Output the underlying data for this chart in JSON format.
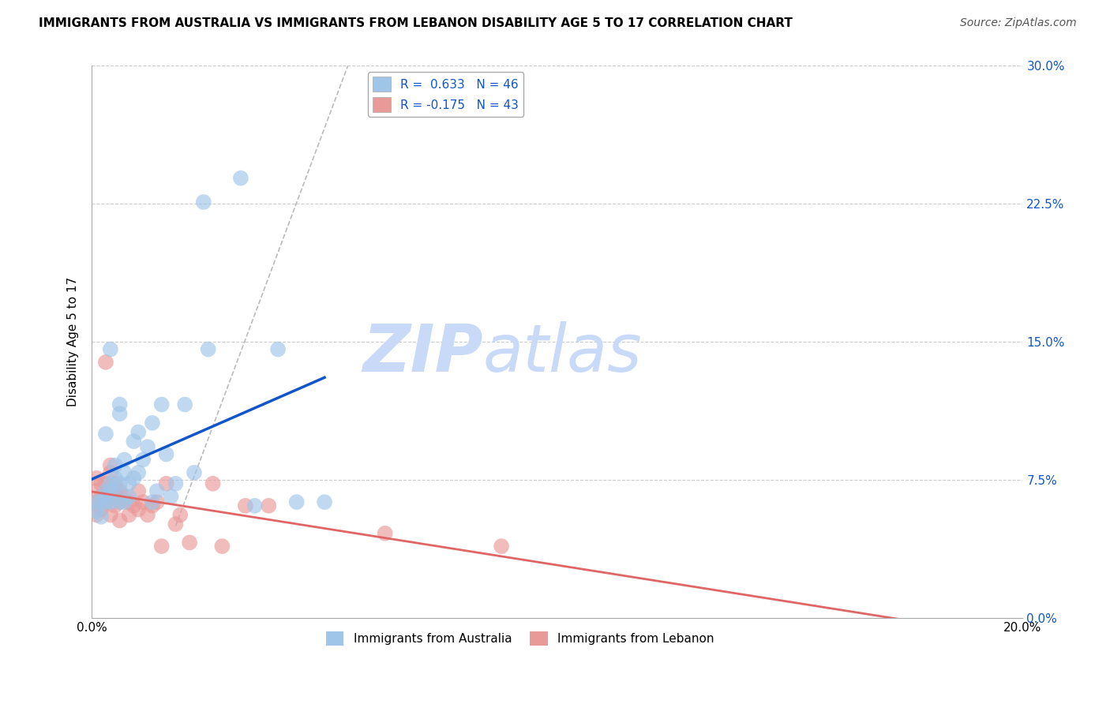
{
  "title": "IMMIGRANTS FROM AUSTRALIA VS IMMIGRANTS FROM LEBANON DISABILITY AGE 5 TO 17 CORRELATION CHART",
  "source": "Source: ZipAtlas.com",
  "ylabel": "Disability Age 5 to 17",
  "xlim": [
    0.0,
    0.2
  ],
  "ylim": [
    0.0,
    0.3
  ],
  "xticks": [
    0.0,
    0.2
  ],
  "yticks": [
    0.0,
    0.075,
    0.15,
    0.225,
    0.3
  ],
  "legend1_label": "R =  0.633   N = 46",
  "legend2_label": "R = -0.175   N = 43",
  "legend_bottom_label1": "Immigrants from Australia",
  "legend_bottom_label2": "Immigrants from Lebanon",
  "color_australia": "#9fc5e8",
  "color_lebanon": "#ea9999",
  "regression_color_australia": "#1155cc",
  "regression_color_lebanon": "#e06666",
  "watermark_zip": "ZIP",
  "watermark_atlas": "atlas",
  "watermark_color": "#c9daf8",
  "scatter_australia": [
    [
      0.001,
      0.063
    ],
    [
      0.001,
      0.058
    ],
    [
      0.002,
      0.055
    ],
    [
      0.002,
      0.063
    ],
    [
      0.003,
      0.066
    ],
    [
      0.003,
      0.069
    ],
    [
      0.003,
      0.1
    ],
    [
      0.003,
      0.063
    ],
    [
      0.004,
      0.069
    ],
    [
      0.004,
      0.073
    ],
    [
      0.004,
      0.146
    ],
    [
      0.004,
      0.063
    ],
    [
      0.005,
      0.069
    ],
    [
      0.005,
      0.076
    ],
    [
      0.005,
      0.083
    ],
    [
      0.006,
      0.063
    ],
    [
      0.006,
      0.073
    ],
    [
      0.006,
      0.111
    ],
    [
      0.006,
      0.116
    ],
    [
      0.007,
      0.079
    ],
    [
      0.007,
      0.086
    ],
    [
      0.007,
      0.063
    ],
    [
      0.008,
      0.073
    ],
    [
      0.008,
      0.066
    ],
    [
      0.009,
      0.076
    ],
    [
      0.009,
      0.096
    ],
    [
      0.01,
      0.101
    ],
    [
      0.01,
      0.079
    ],
    [
      0.011,
      0.086
    ],
    [
      0.012,
      0.093
    ],
    [
      0.013,
      0.063
    ],
    [
      0.013,
      0.106
    ],
    [
      0.014,
      0.069
    ],
    [
      0.015,
      0.116
    ],
    [
      0.016,
      0.089
    ],
    [
      0.017,
      0.066
    ],
    [
      0.018,
      0.073
    ],
    [
      0.02,
      0.116
    ],
    [
      0.022,
      0.079
    ],
    [
      0.024,
      0.226
    ],
    [
      0.025,
      0.146
    ],
    [
      0.032,
      0.239
    ],
    [
      0.035,
      0.061
    ],
    [
      0.04,
      0.146
    ],
    [
      0.044,
      0.063
    ],
    [
      0.05,
      0.063
    ]
  ],
  "scatter_lebanon": [
    [
      0.001,
      0.063
    ],
    [
      0.001,
      0.069
    ],
    [
      0.001,
      0.076
    ],
    [
      0.001,
      0.056
    ],
    [
      0.002,
      0.063
    ],
    [
      0.002,
      0.073
    ],
    [
      0.002,
      0.059
    ],
    [
      0.002,
      0.066
    ],
    [
      0.003,
      0.073
    ],
    [
      0.003,
      0.139
    ],
    [
      0.003,
      0.063
    ],
    [
      0.003,
      0.069
    ],
    [
      0.004,
      0.083
    ],
    [
      0.004,
      0.056
    ],
    [
      0.004,
      0.066
    ],
    [
      0.004,
      0.079
    ],
    [
      0.005,
      0.061
    ],
    [
      0.005,
      0.069
    ],
    [
      0.005,
      0.073
    ],
    [
      0.006,
      0.063
    ],
    [
      0.006,
      0.069
    ],
    [
      0.006,
      0.053
    ],
    [
      0.007,
      0.066
    ],
    [
      0.008,
      0.063
    ],
    [
      0.008,
      0.056
    ],
    [
      0.009,
      0.061
    ],
    [
      0.01,
      0.059
    ],
    [
      0.01,
      0.069
    ],
    [
      0.011,
      0.063
    ],
    [
      0.012,
      0.056
    ],
    [
      0.013,
      0.061
    ],
    [
      0.014,
      0.063
    ],
    [
      0.015,
      0.039
    ],
    [
      0.016,
      0.073
    ],
    [
      0.018,
      0.051
    ],
    [
      0.019,
      0.056
    ],
    [
      0.021,
      0.041
    ],
    [
      0.026,
      0.073
    ],
    [
      0.028,
      0.039
    ],
    [
      0.033,
      0.061
    ],
    [
      0.038,
      0.061
    ],
    [
      0.063,
      0.046
    ],
    [
      0.088,
      0.039
    ]
  ],
  "scatter_size": 200,
  "background_color": "#ffffff",
  "grid_color": "#cccccc"
}
